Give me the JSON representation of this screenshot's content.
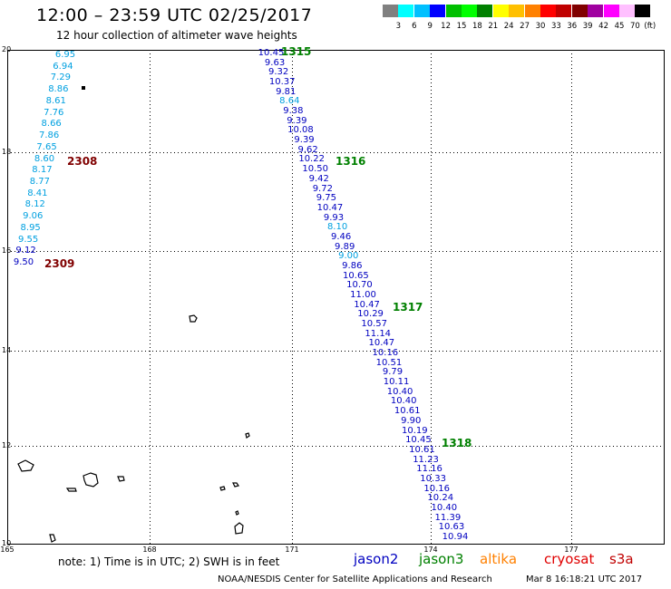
{
  "header": {
    "title": "12:00 – 23:59 UTC 02/25/2017",
    "subtitle": "12 hour collection of altimeter wave heights"
  },
  "legend": {
    "colors": [
      "#808080",
      "#00ffff",
      "#00c0ff",
      "#0000ff",
      "#00c000",
      "#00ff00",
      "#008000",
      "#ffff00",
      "#ffc000",
      "#ff8000",
      "#ff0000",
      "#c00000",
      "#800000",
      "#a000a0",
      "#ff00ff",
      "#ffc0ff",
      "#000000"
    ],
    "labels": [
      "3",
      "6",
      "9",
      "12",
      "15",
      "18",
      "21",
      "24",
      "27",
      "30",
      "33",
      "36",
      "39",
      "42",
      "45",
      "70"
    ],
    "unit": "(ft)"
  },
  "axes": {
    "y_labels": [
      "20",
      "18",
      "16",
      "14",
      "12",
      "10"
    ],
    "x_labels": [
      "165",
      "168",
      "171",
      "174",
      "177"
    ]
  },
  "passes": [
    {
      "id": "1315",
      "color": "#008000"
    },
    {
      "id": "1316",
      "color": "#008000"
    },
    {
      "id": "1317",
      "color": "#008000"
    },
    {
      "id": "1318",
      "color": "#008000"
    },
    {
      "id": "2308",
      "color": "#800000"
    },
    {
      "id": "2309",
      "color": "#800000"
    }
  ],
  "track_west": [
    {
      "v": "6.95",
      "c": "#00a0e0"
    },
    {
      "v": "6.94",
      "c": "#00a0e0"
    },
    {
      "v": "7.29",
      "c": "#00a0e0"
    },
    {
      "v": "8.86",
      "c": "#00a0e0"
    },
    {
      "v": "8.61",
      "c": "#00a0e0"
    },
    {
      "v": "7.76",
      "c": "#00a0e0"
    },
    {
      "v": "8.66",
      "c": "#00a0e0"
    },
    {
      "v": "7.86",
      "c": "#00a0e0"
    },
    {
      "v": "7.65",
      "c": "#00a0e0"
    },
    {
      "v": "8.60",
      "c": "#00a0e0"
    },
    {
      "v": "8.17",
      "c": "#00a0e0"
    },
    {
      "v": "8.77",
      "c": "#00a0e0"
    },
    {
      "v": "8.41",
      "c": "#00a0e0"
    },
    {
      "v": "8.12",
      "c": "#00a0e0"
    },
    {
      "v": "9.06",
      "c": "#00a0e0"
    },
    {
      "v": "8.95",
      "c": "#00a0e0"
    },
    {
      "v": "9.55",
      "c": "#00a0e0"
    },
    {
      "v": "9.12",
      "c": "#0000c0"
    },
    {
      "v": "9.50",
      "c": "#0000c0"
    }
  ],
  "track_east": [
    {
      "v": "10.45",
      "c": "#0000c0"
    },
    {
      "v": "9.63",
      "c": "#0000c0"
    },
    {
      "v": "9.32",
      "c": "#0000c0"
    },
    {
      "v": "10.37",
      "c": "#0000c0"
    },
    {
      "v": "9.81",
      "c": "#0000c0"
    },
    {
      "v": "8.64",
      "c": "#00a0e0"
    },
    {
      "v": "9.38",
      "c": "#0000c0"
    },
    {
      "v": "9.39",
      "c": "#0000c0"
    },
    {
      "v": "10.08",
      "c": "#0000c0"
    },
    {
      "v": "9.39",
      "c": "#0000c0"
    },
    {
      "v": "9.62",
      "c": "#0000c0"
    },
    {
      "v": "10.22",
      "c": "#0000c0"
    },
    {
      "v": "10.50",
      "c": "#0000c0"
    },
    {
      "v": "9.42",
      "c": "#0000c0"
    },
    {
      "v": "9.72",
      "c": "#0000c0"
    },
    {
      "v": "9.75",
      "c": "#0000c0"
    },
    {
      "v": "10.47",
      "c": "#0000c0"
    },
    {
      "v": "9.93",
      "c": "#0000c0"
    },
    {
      "v": "8.10",
      "c": "#00a0e0"
    },
    {
      "v": "9.46",
      "c": "#0000c0"
    },
    {
      "v": "9.89",
      "c": "#0000c0"
    },
    {
      "v": "9.00",
      "c": "#00a0e0"
    },
    {
      "v": "9.86",
      "c": "#0000c0"
    },
    {
      "v": "10.65",
      "c": "#0000c0"
    },
    {
      "v": "10.70",
      "c": "#0000c0"
    },
    {
      "v": "11.00",
      "c": "#0000c0"
    },
    {
      "v": "10.47",
      "c": "#0000c0"
    },
    {
      "v": "10.29",
      "c": "#0000c0"
    },
    {
      "v": "10.57",
      "c": "#0000c0"
    },
    {
      "v": "11.14",
      "c": "#0000c0"
    },
    {
      "v": "10.47",
      "c": "#0000c0"
    },
    {
      "v": "10.16",
      "c": "#0000c0"
    },
    {
      "v": "10.51",
      "c": "#0000c0"
    },
    {
      "v": "9.79",
      "c": "#0000c0"
    },
    {
      "v": "10.11",
      "c": "#0000c0"
    },
    {
      "v": "10.40",
      "c": "#0000c0"
    },
    {
      "v": "10.40",
      "c": "#0000c0"
    },
    {
      "v": "10.61",
      "c": "#0000c0"
    },
    {
      "v": "9.90",
      "c": "#0000c0"
    },
    {
      "v": "10.19",
      "c": "#0000c0"
    },
    {
      "v": "10.45",
      "c": "#0000c0"
    },
    {
      "v": "10.61",
      "c": "#0000c0"
    },
    {
      "v": "11.23",
      "c": "#0000c0"
    },
    {
      "v": "11.16",
      "c": "#0000c0"
    },
    {
      "v": "10.33",
      "c": "#0000c0"
    },
    {
      "v": "10.16",
      "c": "#0000c0"
    },
    {
      "v": "10.24",
      "c": "#0000c0"
    },
    {
      "v": "10.40",
      "c": "#0000c0"
    },
    {
      "v": "11.39",
      "c": "#0000c0"
    },
    {
      "v": "10.63",
      "c": "#0000c0"
    },
    {
      "v": "10.94",
      "c": "#0000c0"
    }
  ],
  "notes": "note: 1) Time is in UTC; 2) SWH is in feet",
  "satellites": [
    {
      "name": "jason2",
      "color": "#0000c0"
    },
    {
      "name": "jason3",
      "color": "#008000"
    },
    {
      "name": "altika",
      "color": "#ff8000"
    },
    {
      "name": "cryosat",
      "color": "#e00000"
    },
    {
      "name": "s3a",
      "color": "#c00000"
    }
  ],
  "footer": "NOAA/NESDIS Center for Satellite Applications and Research",
  "footer_time": "Mar  8 16:18:21 UTC 2017"
}
